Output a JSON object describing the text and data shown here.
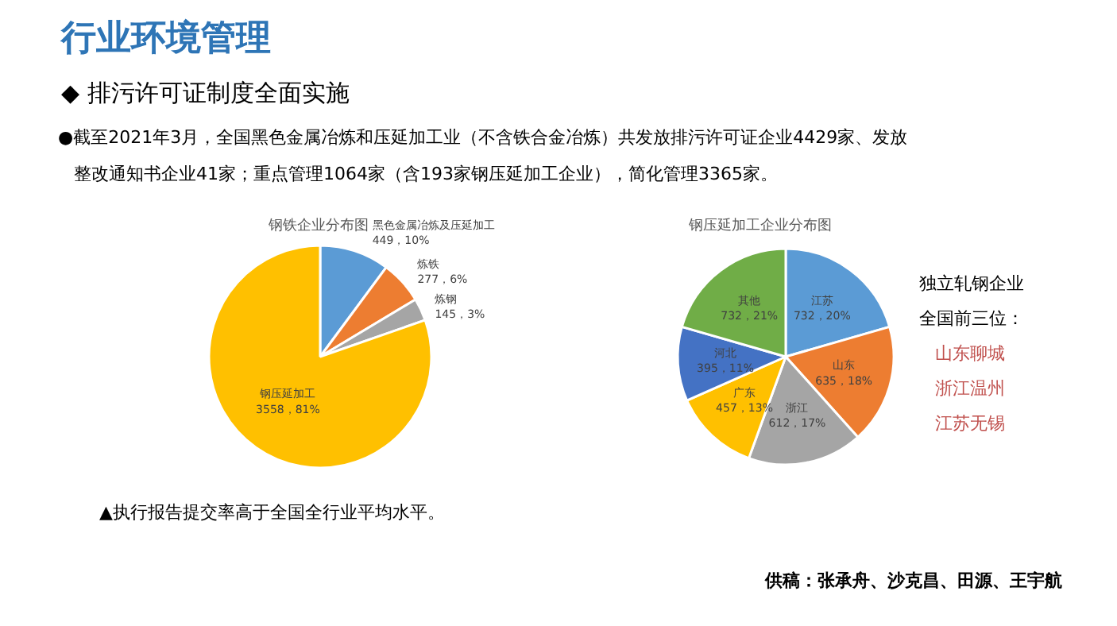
{
  "chart_data": [
    {
      "type": "other",
      "title": "行业环境管理",
      "subtitle": "◆ 排污许可证制度全面实施",
      "annotations": [
        "●截至2021年3月，全国黑色金属冶炼和压延加工业（不含铁合金冶炼）共发放排污许可证企业4429家、发放整改通知书企业41家；重点管理1064家（含193家钢压延加工企业），简化管理3365家。",
        "▲执行报告提交率高于全国全行业平均水平。",
        "供稿：张承舟、沙克昌、田源、王宇航"
      ]
    },
    {
      "type": "pie",
      "title": "钢铁企业分布图",
      "categories": [
        "黑色金属冶炼及压延加工",
        "炼铁",
        "炼钢",
        "钢压延加工"
      ],
      "values": [
        449,
        277,
        145,
        3558
      ],
      "value_labels": [
        "449，10%",
        "277，6%",
        "145，3%",
        "3558，81%"
      ],
      "colors": [
        "#5b9bd5",
        "#ed7d31",
        "#a5a5a5",
        "#ffc000"
      ]
    },
    {
      "type": "pie",
      "title": "钢压延加工企业分布图",
      "categories": [
        "江苏",
        "山东",
        "浙江",
        "广东",
        "河北",
        "其他"
      ],
      "values": [
        732,
        635,
        612,
        457,
        395,
        732
      ],
      "value_labels": [
        "732，20%",
        "635，18%",
        "612，17%",
        "457，13%",
        "395，11%",
        "732，21%"
      ],
      "colors": [
        "#5b9bd5",
        "#ed7d31",
        "#a5a5a5",
        "#ffc000",
        "#4472c4",
        "#70ad47"
      ],
      "annotations": [
        "独立轧钢企业",
        "全国前三位：",
        "山东聊城",
        "浙江温州",
        "江苏无锡"
      ]
    }
  ]
}
